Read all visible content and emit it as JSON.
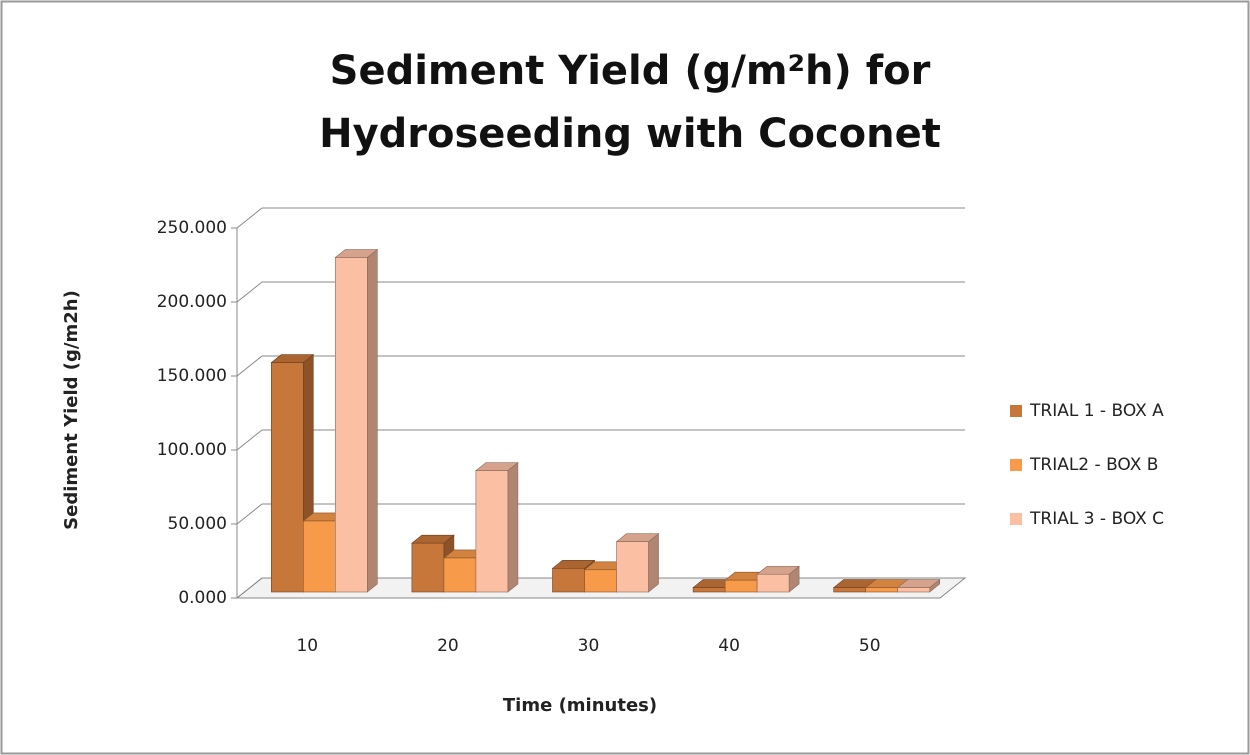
{
  "chart_data": {
    "type": "bar",
    "title": "Sediment Yield (g/m²h) for Hydroseeding with Coconet",
    "x_label": "Time (minutes)",
    "y_label": "Sediment Yield (g/m2h)",
    "categories": [
      "10",
      "20",
      "30",
      "40",
      "50"
    ],
    "series": [
      {
        "name": "TRIAL 1 - BOX A",
        "color": "#c8773a",
        "values": [
          155,
          33,
          16,
          3,
          3
        ]
      },
      {
        "name": "TRIAL2 - BOX B",
        "color": "#f79a4a",
        "values": [
          48,
          23,
          15,
          8,
          3
        ]
      },
      {
        "name": "TRIAL 3 - BOX C",
        "color": "#fbbfa3",
        "values": [
          226,
          82,
          34,
          12,
          3
        ]
      }
    ],
    "ylim": [
      0,
      250
    ],
    "yticks": [
      {
        "value": 0,
        "label": "0.000"
      },
      {
        "value": 50,
        "label": "50.000"
      },
      {
        "value": 100,
        "label": "100.000"
      },
      {
        "value": 150,
        "label": "150.000"
      },
      {
        "value": 200,
        "label": "200.000"
      },
      {
        "value": 250,
        "label": "250.000"
      }
    ],
    "grid": true,
    "legend": "right"
  }
}
